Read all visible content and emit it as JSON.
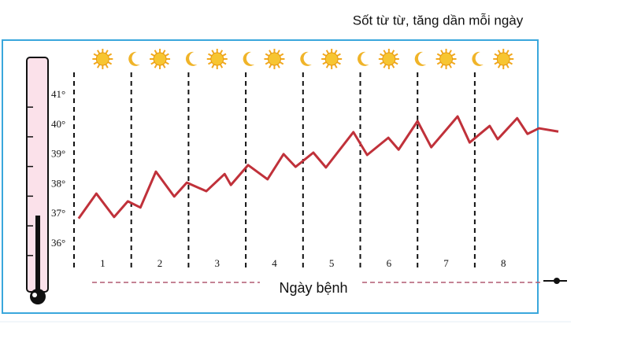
{
  "chart_data": {
    "type": "line",
    "title": "Sốt từ từ, tăng dần mỗi ngày",
    "x_label": "Ngày bệnh",
    "x": [
      0.08,
      0.39,
      0.7,
      0.94,
      1.16,
      1.43,
      1.75,
      1.97,
      2.31,
      2.63,
      2.74,
      3.04,
      3.38,
      3.66,
      3.87,
      4.18,
      4.4,
      4.88,
      5.12,
      5.49,
      5.67,
      6.0,
      6.24,
      6.7,
      6.91,
      7.26,
      7.4,
      7.74,
      7.92,
      8.12,
      8.46
    ],
    "series": [
      {
        "color": "#c0313a",
        "values": [
          36.85,
          37.69,
          36.9,
          37.43,
          37.22,
          38.43,
          37.59,
          38.06,
          37.77,
          38.35,
          37.98,
          38.65,
          38.17,
          39.02,
          38.59,
          39.07,
          38.57,
          39.76,
          38.99,
          39.57,
          39.17,
          40.13,
          39.25,
          40.29,
          39.41,
          39.97,
          39.52,
          40.23,
          39.7,
          39.89,
          39.78
        ]
      }
    ],
    "xlim": [
      0,
      8.5
    ],
    "xticks": [
      {
        "value": 0.5,
        "label": "1"
      },
      {
        "value": 1.5,
        "label": "2"
      },
      {
        "value": 2.5,
        "label": "3"
      },
      {
        "value": 3.5,
        "label": "4"
      },
      {
        "value": 4.5,
        "label": "5"
      },
      {
        "value": 5.5,
        "label": "6"
      },
      {
        "value": 6.5,
        "label": "7"
      },
      {
        "value": 7.5,
        "label": "8"
      }
    ],
    "ylim": [
      35.2,
      41.8
    ],
    "yticks": [
      {
        "value": 36,
        "label": "36°"
      },
      {
        "value": 37,
        "label": "37°"
      },
      {
        "value": 38,
        "label": "38°"
      },
      {
        "value": 39,
        "label": "39°"
      },
      {
        "value": 40,
        "label": "40°"
      },
      {
        "value": 41,
        "label": "41°"
      }
    ]
  }
}
